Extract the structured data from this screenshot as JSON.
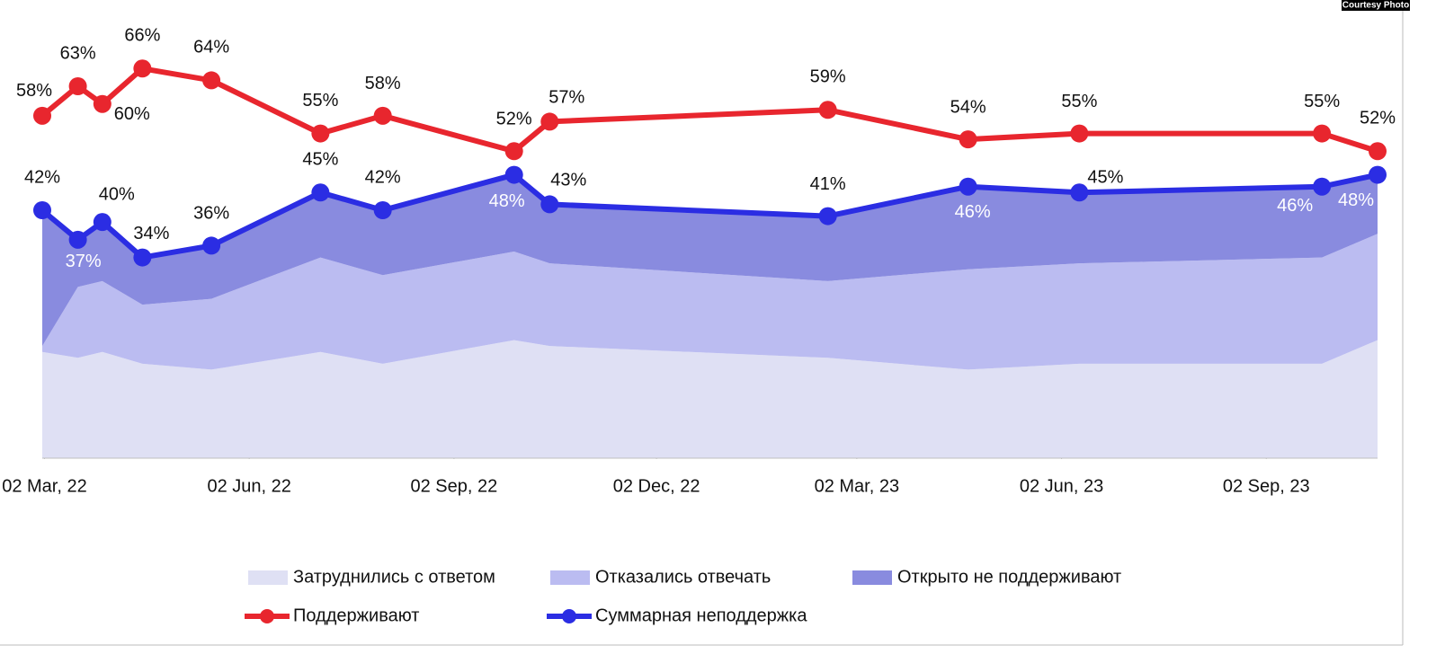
{
  "watermark": "Courtesy Photo",
  "chart_data": {
    "type": "line",
    "x": [
      "2022-03-01",
      "2022-03-17",
      "2022-03-28",
      "2022-04-15",
      "2022-05-16",
      "2022-07-04",
      "2022-08-01",
      "2022-09-29",
      "2022-10-15",
      "2023-02-17",
      "2023-04-21",
      "2023-06-10",
      "2023-09-27",
      "2023-10-22"
    ],
    "xlim": [
      "2022-03-01",
      "2023-10-22"
    ],
    "xticks": [
      {
        "value": "2022-03-02",
        "label": "02 Mar, 22"
      },
      {
        "value": "2022-06-02",
        "label": "02 Jun, 22"
      },
      {
        "value": "2022-09-02",
        "label": "02 Sep, 22"
      },
      {
        "value": "2022-12-02",
        "label": "02 Dec, 22"
      },
      {
        "value": "2023-03-02",
        "label": "02 Mar, 23"
      },
      {
        "value": "2023-06-02",
        "label": "02 Jun, 23"
      },
      {
        "value": "2023-09-02",
        "label": "02 Sep, 23"
      }
    ],
    "ylim": [
      0,
      70
    ],
    "series": [
      {
        "name": "Затруднились с ответом",
        "type": "area",
        "color": "#dfe0f4",
        "values": [
          18,
          17,
          18,
          16,
          15,
          18,
          16,
          20,
          19,
          17,
          15,
          16,
          16,
          20
        ]
      },
      {
        "name": "Отказались отвечать",
        "type": "area",
        "color": "#bbbcf1",
        "values": [
          1,
          12,
          12,
          10,
          12,
          16,
          15,
          15,
          14,
          13,
          17,
          17,
          18,
          18
        ]
      },
      {
        "name": "Открыто не поддерживают",
        "type": "area",
        "color": "#898bdf",
        "values": [
          23,
          8,
          10,
          8,
          9,
          11,
          11,
          13,
          10,
          11,
          14,
          12,
          12,
          10
        ]
      },
      {
        "name": "Поддерживают",
        "type": "line",
        "color": "#e8262e",
        "values": [
          58,
          63,
          60,
          66,
          64,
          55,
          58,
          52,
          57,
          59,
          54,
          55,
          55,
          52
        ],
        "value_labels": [
          "58%",
          "63%",
          "60%",
          "66%",
          "64%",
          "55%",
          "58%",
          "52%",
          "57%",
          "59%",
          "54%",
          "55%",
          "55%",
          "52%"
        ]
      },
      {
        "name": "Суммарная неподдержка",
        "type": "line",
        "color": "#2b2de3",
        "values": [
          42,
          37,
          40,
          34,
          36,
          45,
          42,
          48,
          43,
          41,
          46,
          45,
          46,
          48
        ],
        "value_labels": [
          "42%",
          "37%",
          "40%",
          "34%",
          "36%",
          "45%",
          "42%",
          "48%",
          "43%",
          "41%",
          "46%",
          "45%",
          "46%",
          "48%"
        ]
      }
    ]
  }
}
